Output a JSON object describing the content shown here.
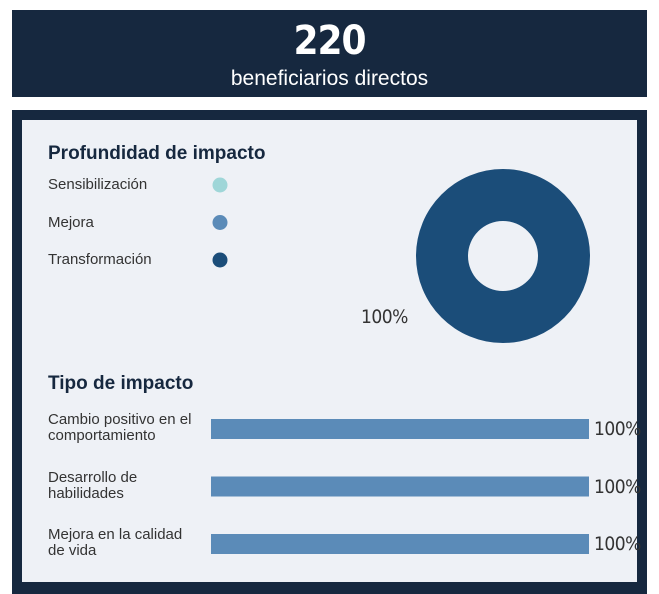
{
  "header": {
    "value": 220,
    "label": "beneficiarios directos"
  },
  "chart_data": [
    {
      "type": "pie",
      "title": "Profundidad de impacto",
      "categories": [
        "Sensibilización",
        "Mejora",
        "Transformación"
      ],
      "values": [
        0,
        0,
        100
      ],
      "colors": [
        "#9fd6d8",
        "#5b8bb8",
        "#1b4d79"
      ],
      "value_label": "100%"
    },
    {
      "type": "bar",
      "title": "Tipo de impacto",
      "categories": [
        "Cambio positivo en el comportamiento",
        "Desarrollo de habilidades",
        "Mejora en la calidad de vida"
      ],
      "values": [
        100,
        100,
        100
      ],
      "value_labels": [
        "100%",
        "100%",
        "100%"
      ],
      "color": "#5b8bb8",
      "xlim": [
        0,
        100
      ]
    }
  ]
}
